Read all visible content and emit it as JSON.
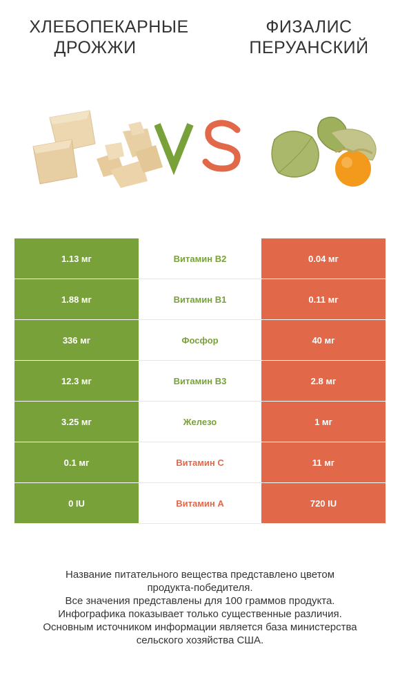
{
  "products": {
    "left_title_line1": "Хлебопекарные",
    "left_title_line2": "дрожжи",
    "right_title_line1": "Физалис",
    "right_title_line2": "перуанский"
  },
  "vs_label": "VS",
  "colors": {
    "left": "#78a13a",
    "right": "#e2684a",
    "text": "#333333"
  },
  "rows": [
    {
      "left": "1.13 мг",
      "nutrient": "Витамин B2",
      "right": "0.04 мг",
      "winner": "left"
    },
    {
      "left": "1.88 мг",
      "nutrient": "Витамин B1",
      "right": "0.11 мг",
      "winner": "left"
    },
    {
      "left": "336 мг",
      "nutrient": "Фосфор",
      "right": "40 мг",
      "winner": "left"
    },
    {
      "left": "12.3 мг",
      "nutrient": "Витамин B3",
      "right": "2.8 мг",
      "winner": "left"
    },
    {
      "left": "3.25 мг",
      "nutrient": "Железо",
      "right": "1 мг",
      "winner": "left"
    },
    {
      "left": "0.1 мг",
      "nutrient": "Витамин C",
      "right": "11 мг",
      "winner": "right"
    },
    {
      "left": "0 IU",
      "nutrient": "Витамин A",
      "right": "720 IU",
      "winner": "right"
    }
  ],
  "footnote": [
    "Название питательного вещества представлено цветом",
    "продукта-победителя.",
    "Все значения представлены для 100 граммов продукта.",
    "Инфографика показывает только существенные различия.",
    "Основным источником информации является база министерства",
    "сельского хозяйства США."
  ]
}
